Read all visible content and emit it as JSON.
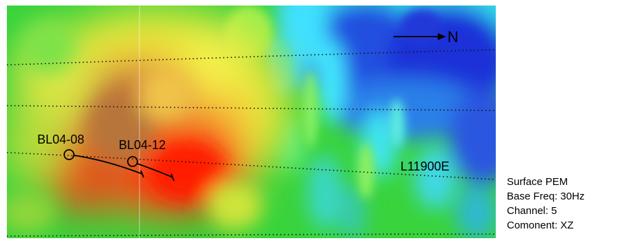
{
  "map": {
    "north_label": "N",
    "line_label": "L11900E",
    "holes": [
      {
        "label": "BL04-08"
      },
      {
        "label": "BL04-12"
      }
    ]
  },
  "info": {
    "survey": "Surface PEM",
    "base_freq": "Base Freq: 30Hz",
    "channel": "Channel: 5",
    "component": "Comonent: XZ"
  },
  "colors": {
    "high": "#ff1a00",
    "mid_high": "#ffff33",
    "mid": "#2fd23a",
    "mid_low": "#33e6ff",
    "low": "#1a2fd6"
  }
}
